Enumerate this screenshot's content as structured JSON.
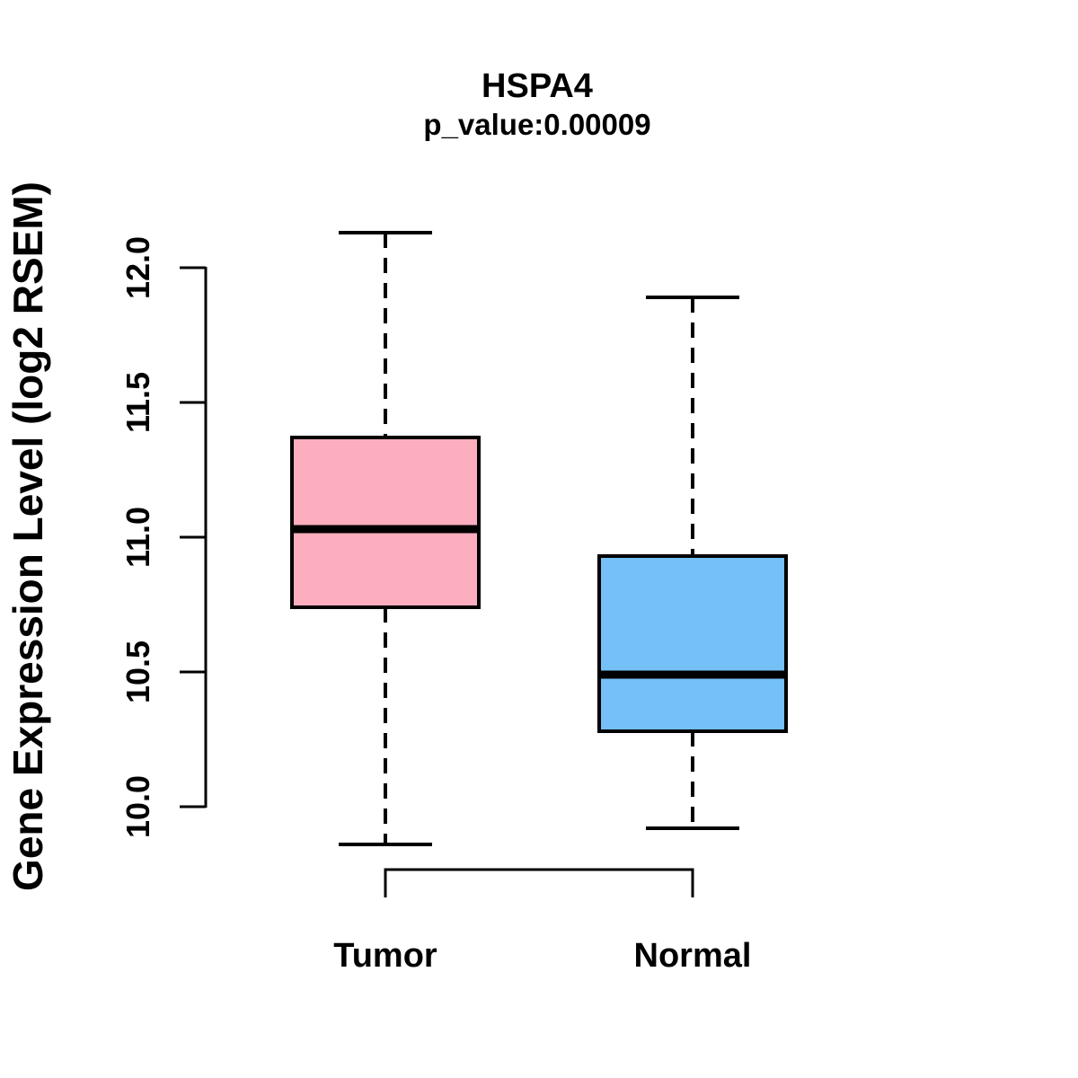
{
  "chart_data": {
    "type": "boxplot",
    "title": "HSPA4",
    "subtitle": "p_value:0.00009",
    "ylabel": "Gene Expression Level (log2 RSEM)",
    "xlabel": "",
    "categories": [
      "Tumor",
      "Normal"
    ],
    "series": [
      {
        "name": "Tumor",
        "color": "#FCAEBE",
        "whisker_low": 9.86,
        "q1": 10.74,
        "median": 11.03,
        "q3": 11.37,
        "whisker_high": 12.13
      },
      {
        "name": "Normal",
        "color": "#74C0F7",
        "whisker_low": 9.92,
        "q1": 10.28,
        "median": 10.49,
        "q3": 10.93,
        "whisker_high": 11.89
      }
    ],
    "y_ticks": [
      "10.0",
      "10.5",
      "11.0",
      "11.5",
      "12.0"
    ],
    "ylim": [
      10.0,
      12.0
    ],
    "grid": false,
    "legend": false
  },
  "colors": {
    "background": "#FFFFFF",
    "foreground": "#000000"
  }
}
